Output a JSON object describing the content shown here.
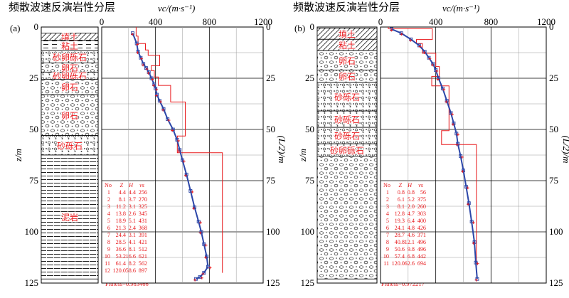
{
  "chart_data": [
    {
      "type": "line",
      "panel": "(a)",
      "title": "频散波速反演岩性分层",
      "xlabel": "vc/(m·s⁻¹)",
      "ylabel_left": "z/m",
      "ylabel_right": "(L/2)/m",
      "xlim": [
        0,
        1200
      ],
      "ylim": [
        0,
        125
      ],
      "x_ticks": [
        "0",
        "400",
        "800",
        "1200"
      ],
      "y_ticks": [
        "0",
        "25",
        "50",
        "75",
        "100",
        "125"
      ],
      "layers": [
        {
          "name": "填土",
          "top": 3,
          "bottom": 6.5,
          "pattern": "hatch"
        },
        {
          "name": "粘土",
          "top": 6.5,
          "bottom": 11.5,
          "pattern": "dash"
        },
        {
          "name": "砂卵砾石",
          "top": 11.5,
          "bottom": 17.5,
          "pattern": "dots"
        },
        {
          "name": "卵石",
          "top": 17.5,
          "bottom": 22,
          "pattern": "pebble"
        },
        {
          "name": "砂卵砾石",
          "top": 22,
          "bottom": 25.5,
          "pattern": "dots"
        },
        {
          "name": "卵石",
          "top": 25.5,
          "bottom": 33,
          "pattern": "pebble"
        },
        {
          "name": "卵石",
          "top": 33,
          "bottom": 53,
          "pattern": "pebble"
        },
        {
          "name": "砂砾石",
          "top": 53,
          "bottom": 62.5,
          "pattern": "dots"
        },
        {
          "name": "泥岩",
          "top": 62.5,
          "bottom": 123,
          "pattern": "mud"
        }
      ],
      "table_headers": [
        "No",
        "Z",
        "H",
        "vs"
      ],
      "table": [
        [
          1,
          4.4,
          4.4,
          256
        ],
        [
          2,
          8.1,
          3.7,
          270
        ],
        [
          3,
          11.2,
          3.1,
          325
        ],
        [
          4,
          13.8,
          2.6,
          345
        ],
        [
          5,
          18.9,
          5.1,
          431
        ],
        [
          6,
          21.3,
          2.4,
          368
        ],
        [
          7,
          24.4,
          3.1,
          391
        ],
        [
          8,
          28.5,
          4.1,
          421
        ],
        [
          9,
          36.6,
          8.1,
          512
        ],
        [
          10,
          53.2,
          16.6,
          621
        ],
        [
          11,
          61.4,
          8.2,
          562
        ],
        [
          12,
          120.0,
          58.6,
          897
        ]
      ],
      "fitness": "Fitness=0.983466",
      "series": [
        {
          "x": [
            230,
            260,
            270,
            290,
            310,
            330,
            350,
            370,
            390,
            400,
            410,
            430,
            460,
            490,
            530,
            560,
            580,
            600,
            630,
            660,
            690,
            720,
            740,
            760,
            780,
            790,
            760,
            730,
            700
          ],
          "y": [
            3,
            8,
            12,
            15,
            18,
            20,
            22,
            25,
            28,
            30,
            33,
            36,
            40,
            45,
            50,
            55,
            60,
            65,
            72,
            80,
            88,
            95,
            100,
            106,
            112,
            117,
            120,
            122,
            123
          ]
        }
      ]
    },
    {
      "type": "line",
      "panel": "(b)",
      "title": "频散波速反演岩性分层",
      "xlabel": "vc/(m·s⁻¹)",
      "ylabel_left": "z/m",
      "ylabel_right": "(L/2)/m",
      "xlim": [
        0,
        1200
      ],
      "ylim": [
        0,
        125
      ],
      "x_ticks": [
        "0",
        "400",
        "800",
        "1200"
      ],
      "y_ticks": [
        "0",
        "25",
        "50",
        "75",
        "100",
        "125"
      ],
      "layers": [
        {
          "name": "填土",
          "top": 0.5,
          "bottom": 6,
          "pattern": "hatch"
        },
        {
          "name": "粘土",
          "top": 6,
          "bottom": 11.5,
          "pattern": "hatch"
        },
        {
          "name": "卵石",
          "top": 11.5,
          "bottom": 21,
          "pattern": "pebble"
        },
        {
          "name": "卵石",
          "top": 21,
          "bottom": 27,
          "pattern": "pebble"
        },
        {
          "name": "砂砾石",
          "top": 27,
          "bottom": 41,
          "pattern": "dots"
        },
        {
          "name": "砂砾石",
          "top": 41,
          "bottom": 49,
          "pattern": "dots"
        },
        {
          "name": "砂砾石",
          "top": 49,
          "bottom": 57,
          "pattern": "dots"
        },
        {
          "name": "砂卵砾石",
          "top": 57,
          "bottom": 63,
          "pattern": "dots"
        },
        {
          "name": "",
          "top": 63,
          "bottom": 123,
          "pattern": "pebble"
        }
      ],
      "table_headers": [
        "No",
        "Z",
        "H",
        "vs"
      ],
      "table": [
        [
          1,
          0.8,
          0.8,
          56
        ],
        [
          2,
          6.1,
          5.2,
          375
        ],
        [
          3,
          8.1,
          2.0,
          260
        ],
        [
          4,
          12.8,
          4.7,
          303
        ],
        [
          5,
          19.3,
          6.4,
          400
        ],
        [
          6,
          24.1,
          4.8,
          426
        ],
        [
          7,
          28.7,
          4.6,
          371
        ],
        [
          8,
          40.8,
          12.1,
          496
        ],
        [
          9,
          50.6,
          9.8,
          496
        ],
        [
          10,
          57.4,
          6.8,
          442
        ],
        [
          11,
          120.0,
          62.6,
          694
        ]
      ],
      "fitness": "Fitness=0.972217",
      "series": [
        {
          "x": [
            80,
            150,
            220,
            280,
            320,
            350,
            380,
            400,
            420,
            450,
            480,
            510,
            530,
            550,
            560,
            580,
            600,
            620,
            640,
            660,
            680,
            690,
            700
          ],
          "y": [
            1,
            3,
            6,
            9,
            12,
            15,
            18,
            21,
            25,
            30,
            36,
            42,
            47,
            52,
            57,
            63,
            70,
            78,
            86,
            95,
            105,
            115,
            123
          ]
        }
      ]
    }
  ]
}
